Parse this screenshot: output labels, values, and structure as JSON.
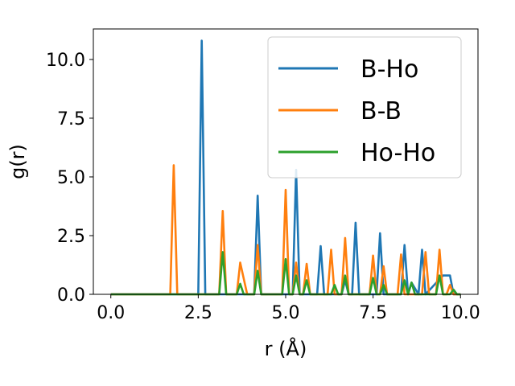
{
  "chart_data": {
    "type": "line",
    "title": "",
    "xlabel": "r (Å)",
    "ylabel": "g(r)",
    "xlim": [
      -0.5,
      10.5
    ],
    "ylim": [
      0,
      11.3
    ],
    "xticks": [
      0.0,
      2.5,
      5.0,
      7.5,
      10.0
    ],
    "xtick_labels": [
      "0.0",
      "2.5",
      "5.0",
      "7.5",
      "10.0"
    ],
    "yticks": [
      0.0,
      2.5,
      5.0,
      7.5,
      10.0
    ],
    "ytick_labels": [
      "0.0",
      "2.5",
      "5.0",
      "7.5",
      "10.0"
    ],
    "grid": false,
    "legend_position": "top-right",
    "series": [
      {
        "name": "B-Ho",
        "color": "#1f77b4",
        "x": [
          0.0,
          2.5,
          2.6,
          2.7,
          4.1,
          4.2,
          4.3,
          5.2,
          5.3,
          5.4,
          5.9,
          6.0,
          6.1,
          6.6,
          6.7,
          6.8,
          6.9,
          7.0,
          7.1,
          7.6,
          7.7,
          7.8,
          8.3,
          8.4,
          8.5,
          8.6,
          8.8,
          8.9,
          9.0,
          9.5,
          9.6,
          9.7,
          9.8,
          10.0
        ],
        "y": [
          0.0,
          0.0,
          10.8,
          0.0,
          0.0,
          4.2,
          0.0,
          0.0,
          5.3,
          0.0,
          0.0,
          2.05,
          0.0,
          0.0,
          0.6,
          0.0,
          0.0,
          3.05,
          0.0,
          0.0,
          2.6,
          0.0,
          0.0,
          2.1,
          0.0,
          0.5,
          0.0,
          1.9,
          0.0,
          0.8,
          0.8,
          0.8,
          0.0,
          0.0
        ]
      },
      {
        "name": "B-B",
        "color": "#ff7f0e",
        "x": [
          0.0,
          1.7,
          1.8,
          1.9,
          3.1,
          3.2,
          3.3,
          3.6,
          3.7,
          3.9,
          4.1,
          4.2,
          4.3,
          4.9,
          5.0,
          5.1,
          5.2,
          5.3,
          5.4,
          5.5,
          5.6,
          5.7,
          6.2,
          6.3,
          6.4,
          6.6,
          6.7,
          6.8,
          6.9,
          7.4,
          7.5,
          7.6,
          7.7,
          7.8,
          7.9,
          8.2,
          8.3,
          8.4,
          8.9,
          9.0,
          9.1,
          9.3,
          9.4,
          9.5,
          9.6,
          9.7,
          9.8,
          10.0
        ],
        "y": [
          0.0,
          0.0,
          5.5,
          0.0,
          0.0,
          3.55,
          0.0,
          0.0,
          1.35,
          0.0,
          0.0,
          2.1,
          0.0,
          0.0,
          4.45,
          0.0,
          0.0,
          1.35,
          0.0,
          0.0,
          1.3,
          0.0,
          0.0,
          1.9,
          0.0,
          0.0,
          2.4,
          0.0,
          0.0,
          0.0,
          1.65,
          0.0,
          0.0,
          1.2,
          0.0,
          0.0,
          1.7,
          0.0,
          0.0,
          1.8,
          0.0,
          0.0,
          1.9,
          0.0,
          0.0,
          0.4,
          0.0,
          0.0
        ]
      },
      {
        "name": "Ho-Ho",
        "color": "#2ca02c",
        "x": [
          0.0,
          3.1,
          3.2,
          3.3,
          3.6,
          3.7,
          3.8,
          4.1,
          4.2,
          4.3,
          4.9,
          5.0,
          5.1,
          5.2,
          5.3,
          5.4,
          5.5,
          5.6,
          5.7,
          6.3,
          6.4,
          6.5,
          6.6,
          6.7,
          6.8,
          6.9,
          7.4,
          7.5,
          7.6,
          7.7,
          7.8,
          7.9,
          8.3,
          8.4,
          8.5,
          8.6,
          8.7,
          9.3,
          9.4,
          9.5,
          9.7,
          9.8,
          9.9,
          10.0
        ],
        "y": [
          0.0,
          0.0,
          1.8,
          0.0,
          0.0,
          0.45,
          0.0,
          0.0,
          1.0,
          0.0,
          0.0,
          1.5,
          0.0,
          0.0,
          0.8,
          0.0,
          0.0,
          0.6,
          0.0,
          0.0,
          0.4,
          0.0,
          0.0,
          0.8,
          0.0,
          0.0,
          0.0,
          0.7,
          0.0,
          0.0,
          0.4,
          0.0,
          0.0,
          0.6,
          0.0,
          0.5,
          0.0,
          0.0,
          0.8,
          0.0,
          0.0,
          0.2,
          0.0,
          0.0
        ]
      }
    ]
  }
}
